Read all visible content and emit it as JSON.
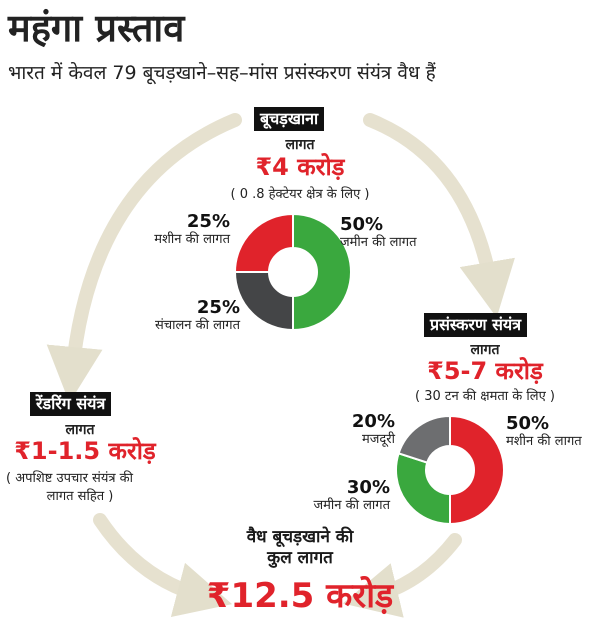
{
  "title": "महंगा प्रस्ताव",
  "subtitle": "भारत में केवल 79 बूचड़खाने–सह–मांस प्रसंस्करण संयंत्र वैध हैं",
  "slaughterhouse": {
    "label": "बूचड़खाना",
    "cost_label": "लागत",
    "cost_value": "₹4 करोड़",
    "note": "( 0 .8 हेक्टेयर क्षेत्र के लिए )",
    "segments": [
      {
        "pct": "50%",
        "name": "जमीन की लागत",
        "value": 50,
        "color": "#3aa83e"
      },
      {
        "pct": "25%",
        "name": "संचालन की लागत",
        "value": 25,
        "color": "#444547"
      },
      {
        "pct": "25%",
        "name": "मशीन की लागत",
        "value": 25,
        "color": "#e0232b"
      }
    ]
  },
  "processing": {
    "label": "प्रसंस्करण संयंत्र",
    "cost_label": "लागत",
    "cost_value": "₹5-7 करोड़",
    "note": "( 30 टन की क्षमता के लिए )",
    "segments": [
      {
        "pct": "50%",
        "name": "मशीन की लागत",
        "value": 50,
        "color": "#e0232b"
      },
      {
        "pct": "30%",
        "name": "जमीन की लागत",
        "value": 30,
        "color": "#3aa83e"
      },
      {
        "pct": "20%",
        "name": "मजदूरी",
        "value": 20,
        "color": "#6d6e70"
      }
    ]
  },
  "rendering": {
    "label": "रेंडरिंग संयंत्र",
    "cost_label": "लागत",
    "cost_value": "₹1-1.5 करोड़",
    "note_line1": "( अपशिष्ट उपचार संयंत्र की",
    "note_line2": "लागत सहित )"
  },
  "total": {
    "label_line1": "वैध बूचड़खाने की",
    "label_line2": "कुल लागत",
    "value": "₹12.5 करोड़"
  },
  "colors": {
    "accent": "#e0232b",
    "arrow": "#e6e1cf",
    "label_bg": "#111111"
  }
}
